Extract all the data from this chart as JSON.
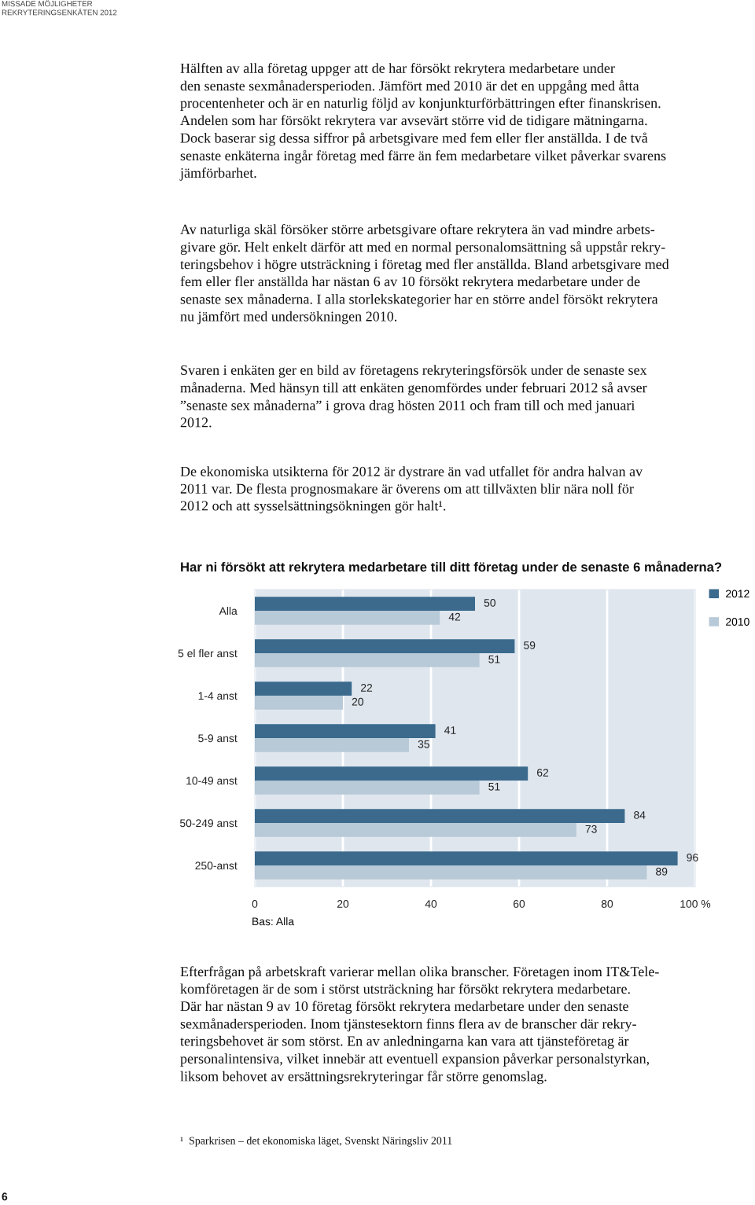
{
  "chart_data": {
    "type": "bar",
    "orientation": "horizontal",
    "title": "Har ni försökt att rekrytera medarbetare till ditt företag under de senaste 6 månaderna?",
    "categories": [
      "Alla",
      "5 el fler anst",
      "1-4 anst",
      "5-9 anst",
      "10-49 anst",
      "50-249 anst",
      "250-anst"
    ],
    "series": [
      {
        "name": "2012",
        "color": "#3b6a8d",
        "values": [
          50,
          59,
          22,
          41,
          62,
          84,
          96
        ]
      },
      {
        "name": "2010",
        "color": "#b8c9d7",
        "values": [
          42,
          51,
          20,
          35,
          51,
          73,
          89
        ]
      }
    ],
    "xlim": [
      0,
      100
    ],
    "xticks": [
      0,
      20,
      40,
      60,
      80,
      {
        "value": 100,
        "label": "100 %"
      }
    ],
    "grid": "x",
    "legend": "top right",
    "data_labels": true,
    "annotations": [
      "MISSADE MÖJLIGHETER\nREKRYTERINGSENKÄTEN 2012",
      "Hälften av alla företag uppger att de har försökt rekrytera medarbetare under\nden senaste sexmånadersperioden. Jämfört med 2010 är det en uppgång med åtta\nprocentenheter och är en naturlig följd av konjunkturförbättringen efter finanskrisen.\nAndelen som har försökt rekrytera var avsevärt större vid de tidigare mätningarna.\nDock baserar sig dessa siffror på arbetsgivare med fem eller fler anställda. I de två\nsenaste enkäterna ingår företag med färre än fem medarbetare vilket påverkar svarens\njämförbarhet.",
      "Av naturliga skäl försöker större arbetsgivare oftare rekrytera än vad mindre arbets-\ngivare gör. Helt enkelt därför att med en normal personalomsättning så uppstår rekry-\nteringsbehov i högre utsträckning i företag med fler anställda. Bland arbetsgivare med\nfem eller fler anställda har nästan 6 av 10 försökt rekrytera medarbetare under de\nsenaste sex månaderna. I alla storlekskategorier har en större andel försökt rekrytera\nnu jämfört med undersökningen 2010.",
      "Svaren i enkäten ger en bild av företagens rekryteringsförsök under de senaste sex\nmånaderna. Med hänsyn till att enkäten genomfördes under februari 2012 så avser\n”senaste sex månaderna” i grova drag hösten 2011 och fram till och med januari\n2012.",
      "De ekonomiska utsikterna för 2012 är dystrare än vad utfallet för andra halvan av\n2011 var. De flesta prognosmakare är överens om att tillväxten blir nära noll för\n2012 och att sysselsättningsökningen gör halt¹.",
      "Bas: Alla",
      "Efterfrågan på arbetskraft varierar mellan olika branscher. Företagen inom IT&Tele-\nkomföretagen är de som i störst utsträckning har försökt rekrytera medarbetare.\nDär har nästan 9 av 10 företag försökt rekrytera medarbetare under den senaste\nsexmånadersperioden. Inom tjänstesektorn finns flera av de branscher där rekry-\nteringsbehovet är som störst. En av anledningarna kan vara att tjänsteföretag är\npersonalintensiva, vilket innebär att eventuell expansion påverkar personalstyrkan,\nliksom behovet av ersättningsrekryteringar får större genomslag.",
      "¹  Sparkrisen – det ekonomiska läget, Svenskt Näringsliv 2011",
      "6"
    ]
  }
}
